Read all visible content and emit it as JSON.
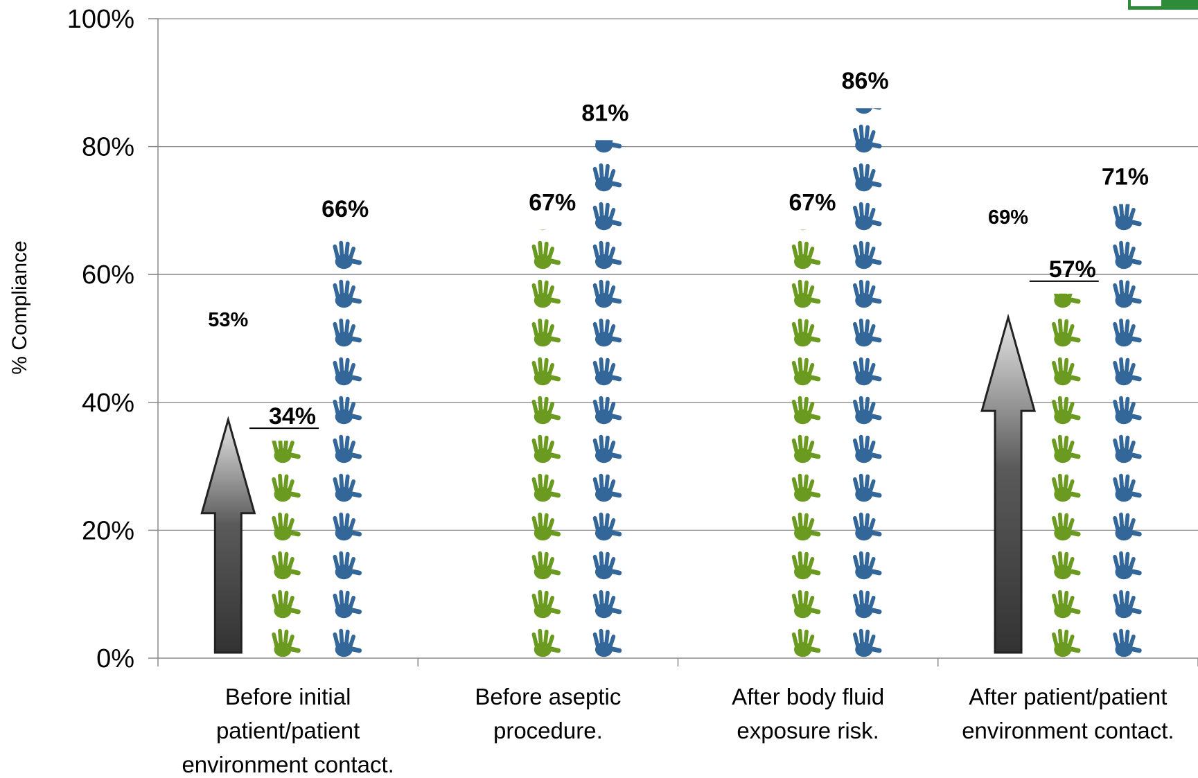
{
  "chart_data": {
    "type": "bar",
    "ylabel": "% Compliance",
    "ylim": [
      0,
      100
    ],
    "yticks": [
      "0%",
      "20%",
      "40%",
      "60%",
      "80%",
      "100%"
    ],
    "grid": true,
    "categories": [
      [
        "Before initial",
        "patient/patient",
        "environment contact."
      ],
      [
        "Before aseptic",
        "procedure."
      ],
      [
        "After body fluid",
        "exposure risk."
      ],
      [
        "After patient/patient",
        "environment contact."
      ]
    ],
    "series": [
      {
        "color": "#6a9a1f",
        "values": [
          34,
          67,
          67,
          57
        ],
        "labels": [
          "34%",
          "67%",
          "67%",
          "57%"
        ]
      },
      {
        "color": "#336699",
        "values": [
          66,
          81,
          86,
          71
        ],
        "labels": [
          "66%",
          "81%",
          "86%",
          "71%"
        ]
      }
    ],
    "arrows": [
      {
        "category": 0,
        "value": 53,
        "label": "53%"
      },
      {
        "category": 3,
        "value": 69,
        "label": "69%"
      }
    ]
  }
}
